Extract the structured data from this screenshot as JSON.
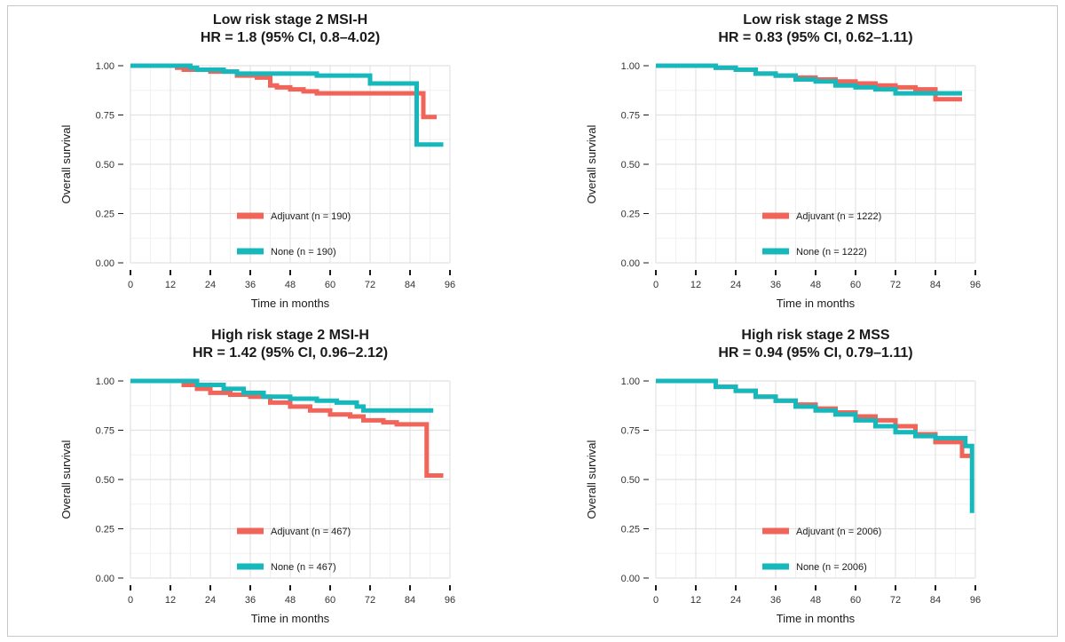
{
  "chart_data": [
    {
      "type": "line",
      "title": "Low risk stage 2 MSI-H",
      "subtitle": "HR = 1.8 (95% CI, 0.8–4.02)",
      "xlabel": "Time in months",
      "ylabel": "Overall survival",
      "xlim": [
        0,
        96
      ],
      "ylim": [
        0,
        1
      ],
      "xticks": [
        "0",
        "12",
        "24",
        "36",
        "48",
        "60",
        "72",
        "84",
        "96"
      ],
      "yticks": [
        "0.00",
        "0.25",
        "0.50",
        "0.75",
        "1.00"
      ],
      "legend": [
        "Adjuvant (n = 190)",
        "None (n = 190)"
      ],
      "legend_position": "lower-center",
      "series": [
        {
          "name": "Adjuvant",
          "color": "#f0645a",
          "x": [
            0,
            8,
            14,
            16,
            22,
            24,
            30,
            32,
            38,
            42,
            44,
            48,
            52,
            56,
            86,
            88,
            88,
            92
          ],
          "y": [
            1.0,
            1.0,
            0.99,
            0.98,
            0.98,
            0.97,
            0.97,
            0.95,
            0.94,
            0.9,
            0.89,
            0.88,
            0.87,
            0.86,
            0.86,
            0.86,
            0.74,
            0.74
          ]
        },
        {
          "name": "None",
          "color": "#17b8bc",
          "x": [
            0,
            14,
            18,
            20,
            28,
            32,
            56,
            72,
            86,
            86,
            94
          ],
          "y": [
            1.0,
            1.0,
            0.99,
            0.98,
            0.97,
            0.96,
            0.95,
            0.91,
            0.91,
            0.6,
            0.6
          ]
        }
      ]
    },
    {
      "type": "line",
      "title": "Low risk stage 2 MSS",
      "subtitle": "HR = 0.83 (95% CI, 0.62–1.11)",
      "xlabel": "Time in months",
      "ylabel": "Overall survival",
      "xlim": [
        0,
        96
      ],
      "ylim": [
        0,
        1
      ],
      "xticks": [
        "0",
        "12",
        "24",
        "36",
        "48",
        "60",
        "72",
        "84",
        "96"
      ],
      "yticks": [
        "0.00",
        "0.25",
        "0.50",
        "0.75",
        "1.00"
      ],
      "legend": [
        "Adjuvant (n = 1222)",
        "None (n = 1222)"
      ],
      "legend_position": "lower-center",
      "series": [
        {
          "name": "Adjuvant",
          "color": "#f0645a",
          "x": [
            0,
            12,
            18,
            24,
            30,
            36,
            42,
            48,
            54,
            60,
            66,
            72,
            78,
            84,
            92
          ],
          "y": [
            1.0,
            1.0,
            0.99,
            0.98,
            0.96,
            0.95,
            0.94,
            0.93,
            0.92,
            0.91,
            0.9,
            0.89,
            0.88,
            0.83,
            0.83
          ]
        },
        {
          "name": "None",
          "color": "#17b8bc",
          "x": [
            0,
            12,
            18,
            24,
            30,
            36,
            42,
            48,
            54,
            60,
            66,
            72,
            78,
            84,
            92
          ],
          "y": [
            1.0,
            1.0,
            0.99,
            0.98,
            0.96,
            0.95,
            0.93,
            0.92,
            0.9,
            0.89,
            0.88,
            0.86,
            0.86,
            0.86,
            0.86
          ]
        }
      ]
    },
    {
      "type": "line",
      "title": "High risk stage 2 MSI-H",
      "subtitle": "HR = 1.42 (95% CI, 0.96–2.12)",
      "xlabel": "Time in months",
      "ylabel": "Overall survival",
      "xlim": [
        0,
        96
      ],
      "ylim": [
        0,
        1
      ],
      "xticks": [
        "0",
        "12",
        "24",
        "36",
        "48",
        "60",
        "72",
        "84",
        "96"
      ],
      "yticks": [
        "0.00",
        "0.25",
        "0.50",
        "0.75",
        "1.00"
      ],
      "legend": [
        "Adjuvant (n = 467)",
        "None (n = 467)"
      ],
      "legend_position": "lower-center",
      "series": [
        {
          "name": "Adjuvant",
          "color": "#f0645a",
          "x": [
            0,
            12,
            16,
            20,
            24,
            30,
            36,
            42,
            48,
            54,
            60,
            66,
            70,
            76,
            80,
            89,
            89,
            94
          ],
          "y": [
            1.0,
            1.0,
            0.98,
            0.96,
            0.94,
            0.93,
            0.92,
            0.89,
            0.87,
            0.85,
            0.83,
            0.82,
            0.8,
            0.79,
            0.78,
            0.78,
            0.52,
            0.52
          ]
        },
        {
          "name": "None",
          "color": "#17b8bc",
          "x": [
            0,
            14,
            20,
            28,
            34,
            40,
            48,
            56,
            62,
            68,
            70,
            80,
            91
          ],
          "y": [
            1.0,
            1.0,
            0.98,
            0.96,
            0.94,
            0.92,
            0.91,
            0.9,
            0.89,
            0.87,
            0.85,
            0.85,
            0.85
          ]
        }
      ]
    },
    {
      "type": "line",
      "title": "High risk stage 2 MSS",
      "subtitle": "HR = 0.94 (95% CI, 0.79–1.11)",
      "xlabel": "Time in months",
      "ylabel": "Overall survival",
      "xlim": [
        0,
        96
      ],
      "ylim": [
        0,
        1
      ],
      "xticks": [
        "0",
        "12",
        "24",
        "36",
        "48",
        "60",
        "72",
        "84",
        "96"
      ],
      "yticks": [
        "0.00",
        "0.25",
        "0.50",
        "0.75",
        "1.00"
      ],
      "legend": [
        "Adjuvant (n = 2006)",
        "None (n = 2006)"
      ],
      "legend_position": "lower-center",
      "series": [
        {
          "name": "Adjuvant",
          "color": "#f0645a",
          "x": [
            0,
            12,
            18,
            24,
            30,
            36,
            42,
            48,
            54,
            60,
            66,
            72,
            78,
            84,
            90,
            92,
            95
          ],
          "y": [
            1.0,
            1.0,
            0.97,
            0.95,
            0.92,
            0.9,
            0.88,
            0.86,
            0.84,
            0.82,
            0.8,
            0.77,
            0.73,
            0.69,
            0.69,
            0.62,
            0.62
          ]
        },
        {
          "name": "None",
          "color": "#17b8bc",
          "x": [
            0,
            12,
            18,
            24,
            30,
            36,
            42,
            48,
            54,
            60,
            66,
            72,
            78,
            84,
            90,
            93,
            95,
            95
          ],
          "y": [
            1.0,
            1.0,
            0.97,
            0.95,
            0.92,
            0.9,
            0.87,
            0.85,
            0.83,
            0.8,
            0.77,
            0.74,
            0.72,
            0.71,
            0.71,
            0.67,
            0.67,
            0.33
          ]
        }
      ]
    }
  ]
}
